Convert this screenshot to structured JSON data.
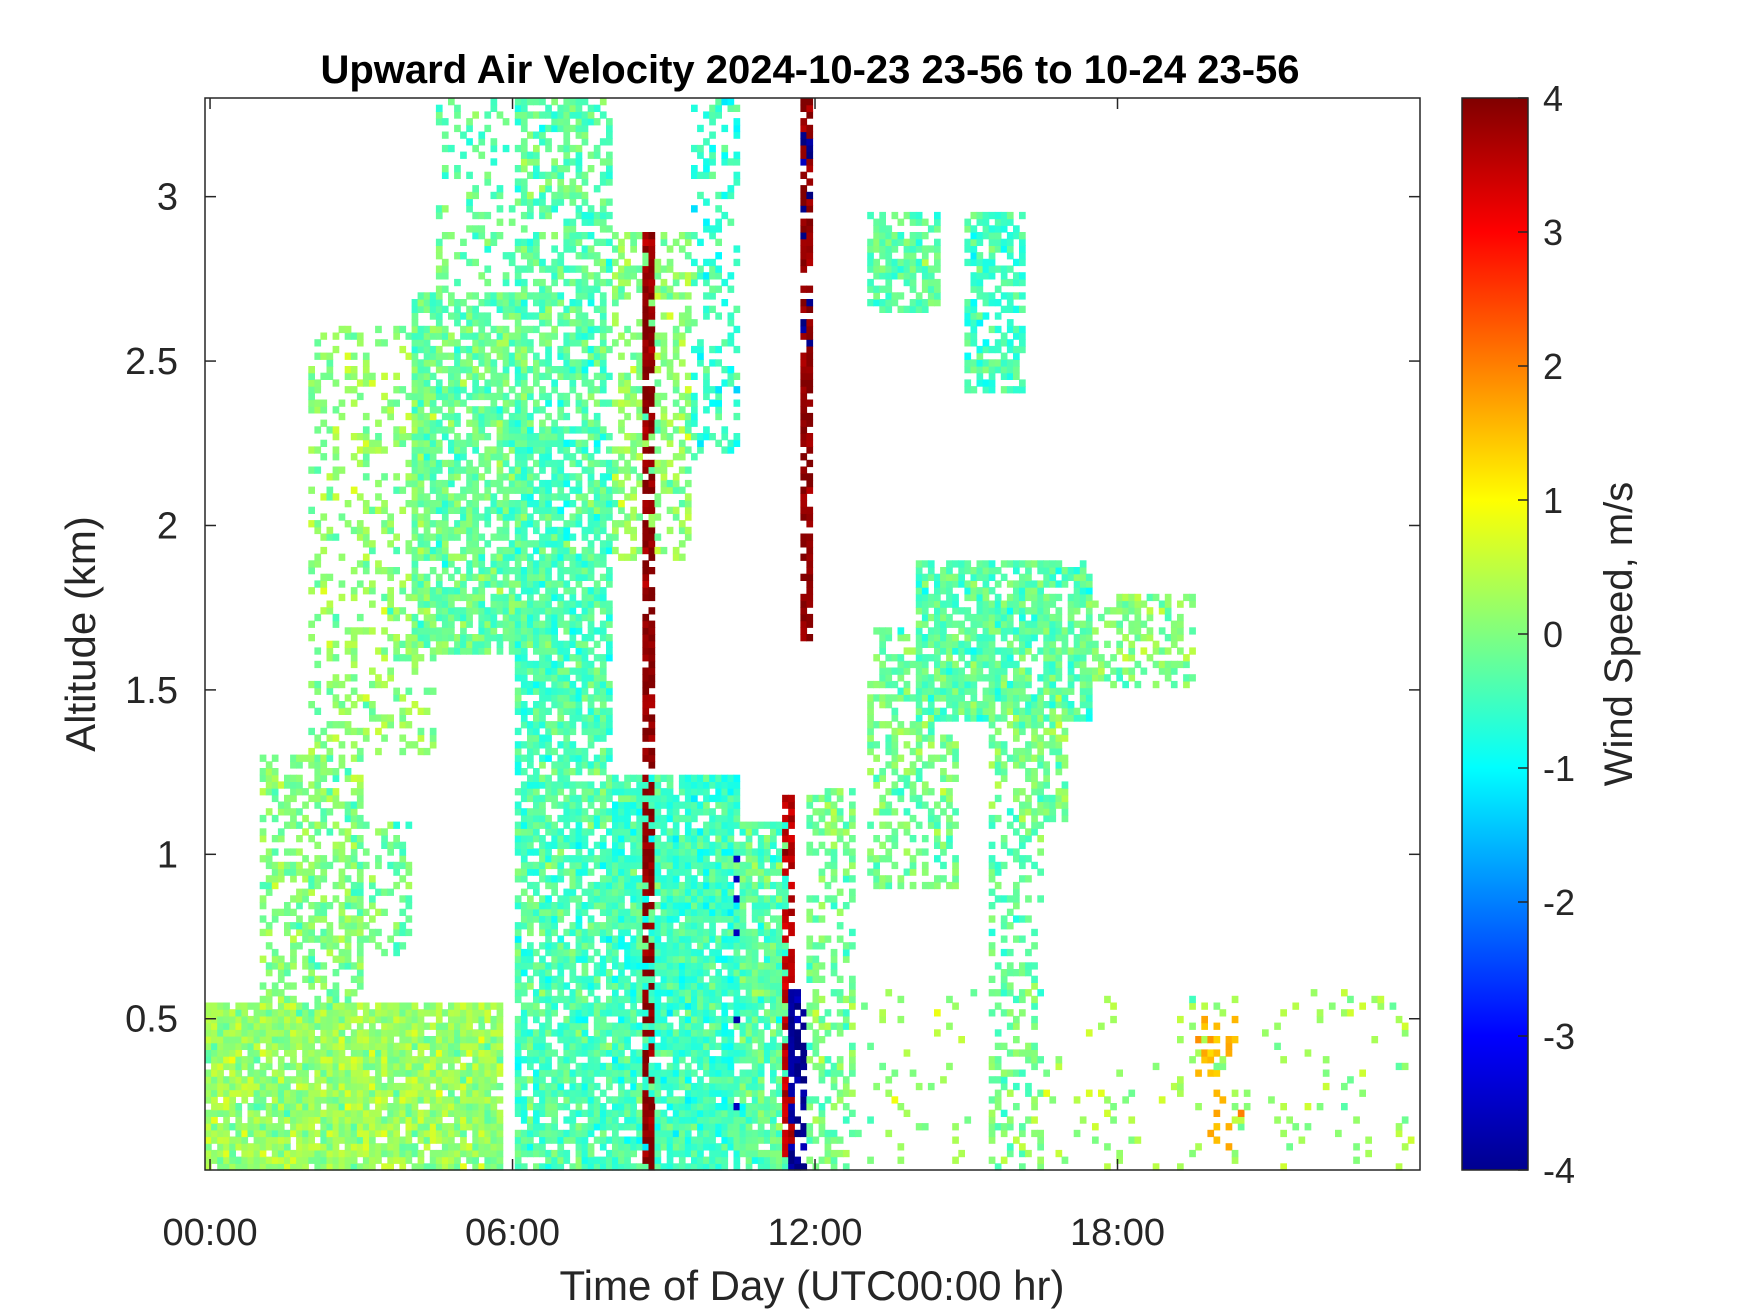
{
  "chart_data": {
    "type": "heatmap",
    "title": "Upward Air Velocity 2024-10-23 23-56 to 10-24 23-56",
    "xlabel": "Time of Day (UTC00:00 hr)",
    "ylabel": "Altitude (km)",
    "xlim": [
      -0.1,
      24.0
    ],
    "ylim": [
      0.04,
      3.3
    ],
    "x_ticks": [
      0,
      6,
      12,
      18
    ],
    "x_tick_labels": [
      "00:00",
      "06:00",
      "12:00",
      "18:00"
    ],
    "y_ticks": [
      0.5,
      1,
      1.5,
      2,
      2.5,
      3
    ],
    "y_tick_labels": [
      "0.5",
      "1",
      "1.5",
      "2",
      "2.5",
      "3"
    ],
    "colorbar": {
      "label": "Wind Speed, m/s",
      "range": [
        -4,
        4
      ],
      "ticks": [
        -4,
        -3,
        -2,
        -1,
        0,
        1,
        2,
        3,
        4
      ],
      "tick_labels": [
        "-4",
        "-3",
        "-2",
        "-1",
        "0",
        "1",
        "2",
        "3",
        "4"
      ],
      "colormap": "jet"
    },
    "grid": false,
    "value_units": "m/s",
    "regions": [
      {
        "x": [
          -0.1,
          5.8
        ],
        "y": [
          0.04,
          0.55
        ],
        "v": 0.2,
        "d": 0.9
      },
      {
        "x": [
          1.0,
          3.0
        ],
        "y": [
          0.55,
          1.3
        ],
        "v": 0.0,
        "d": 0.5
      },
      {
        "x": [
          2.5,
          4.0
        ],
        "y": [
          0.7,
          1.1
        ],
        "v": -0.1,
        "d": 0.35
      },
      {
        "x": [
          2.0,
          4.5
        ],
        "y": [
          1.3,
          2.6
        ],
        "v": 0.1,
        "d": 0.3
      },
      {
        "x": [
          4.0,
          6.3
        ],
        "y": [
          1.6,
          2.7
        ],
        "v": -0.2,
        "d": 0.7
      },
      {
        "x": [
          4.5,
          6.0
        ],
        "y": [
          2.7,
          3.3
        ],
        "v": -0.3,
        "d": 0.25
      },
      {
        "x": [
          6.0,
          8.0
        ],
        "y": [
          0.04,
          2.3
        ],
        "v": -0.4,
        "d": 0.75
      },
      {
        "x": [
          6.0,
          8.0
        ],
        "y": [
          2.3,
          3.3
        ],
        "v": -0.3,
        "d": 0.55
      },
      {
        "x": [
          8.0,
          9.5
        ],
        "y": [
          1.9,
          2.9
        ],
        "v": 0.1,
        "d": 0.45
      },
      {
        "x": [
          9.5,
          10.5
        ],
        "y": [
          2.2,
          3.3
        ],
        "v": -0.6,
        "d": 0.35
      },
      {
        "x": [
          8.0,
          10.5
        ],
        "y": [
          0.04,
          1.25
        ],
        "v": -0.5,
        "d": 0.88
      },
      {
        "x": [
          10.5,
          11.5
        ],
        "y": [
          0.04,
          1.1
        ],
        "v": -0.3,
        "d": 0.85
      },
      {
        "x": [
          11.8,
          12.8
        ],
        "y": [
          0.04,
          1.2
        ],
        "v": -0.1,
        "d": 0.45
      },
      {
        "x": [
          13.0,
          14.8
        ],
        "y": [
          0.9,
          1.7
        ],
        "v": -0.1,
        "d": 0.45
      },
      {
        "x": [
          14.0,
          17.5
        ],
        "y": [
          1.4,
          1.9
        ],
        "v": -0.3,
        "d": 0.75
      },
      {
        "x": [
          15.5,
          17.0
        ],
        "y": [
          1.1,
          1.5
        ],
        "v": -0.1,
        "d": 0.5
      },
      {
        "x": [
          15.5,
          16.5
        ],
        "y": [
          0.04,
          1.1
        ],
        "v": -0.2,
        "d": 0.35
      },
      {
        "x": [
          13.0,
          14.5
        ],
        "y": [
          2.65,
          2.95
        ],
        "v": -0.3,
        "d": 0.6
      },
      {
        "x": [
          15.0,
          16.2
        ],
        "y": [
          2.4,
          2.95
        ],
        "v": -0.5,
        "d": 0.6
      },
      {
        "x": [
          17.5,
          19.5
        ],
        "y": [
          1.5,
          1.8
        ],
        "v": 0.0,
        "d": 0.4
      },
      {
        "x": [
          12.5,
          23.9
        ],
        "y": [
          0.04,
          0.6
        ],
        "v": 0.2,
        "d": 0.06
      },
      {
        "x": [
          19.5,
          20.5
        ],
        "y": [
          0.1,
          0.5
        ],
        "v": 1.5,
        "d": 0.15
      }
    ],
    "columns": [
      {
        "x": [
          8.6,
          8.8
        ],
        "y": [
          0.04,
          2.9
        ],
        "v": 3.9,
        "d": 0.7
      },
      {
        "x": [
          11.4,
          11.6
        ],
        "y": [
          0.04,
          1.2
        ],
        "v": 3.5,
        "d": 0.7
      },
      {
        "x": [
          11.5,
          11.8
        ],
        "y": [
          0.04,
          0.6
        ],
        "v": -3.8,
        "d": 0.6
      },
      {
        "x": [
          11.7,
          11.9
        ],
        "y": [
          1.65,
          3.3
        ],
        "v": 3.9,
        "d": 0.75
      },
      {
        "x": [
          11.7,
          11.9
        ],
        "y": [
          2.5,
          3.2
        ],
        "v": -3.9,
        "d": 0.3
      },
      {
        "x": [
          10.4,
          10.55
        ],
        "y": [
          0.04,
          1.1
        ],
        "v": -3.5,
        "d": 0.12
      }
    ]
  }
}
